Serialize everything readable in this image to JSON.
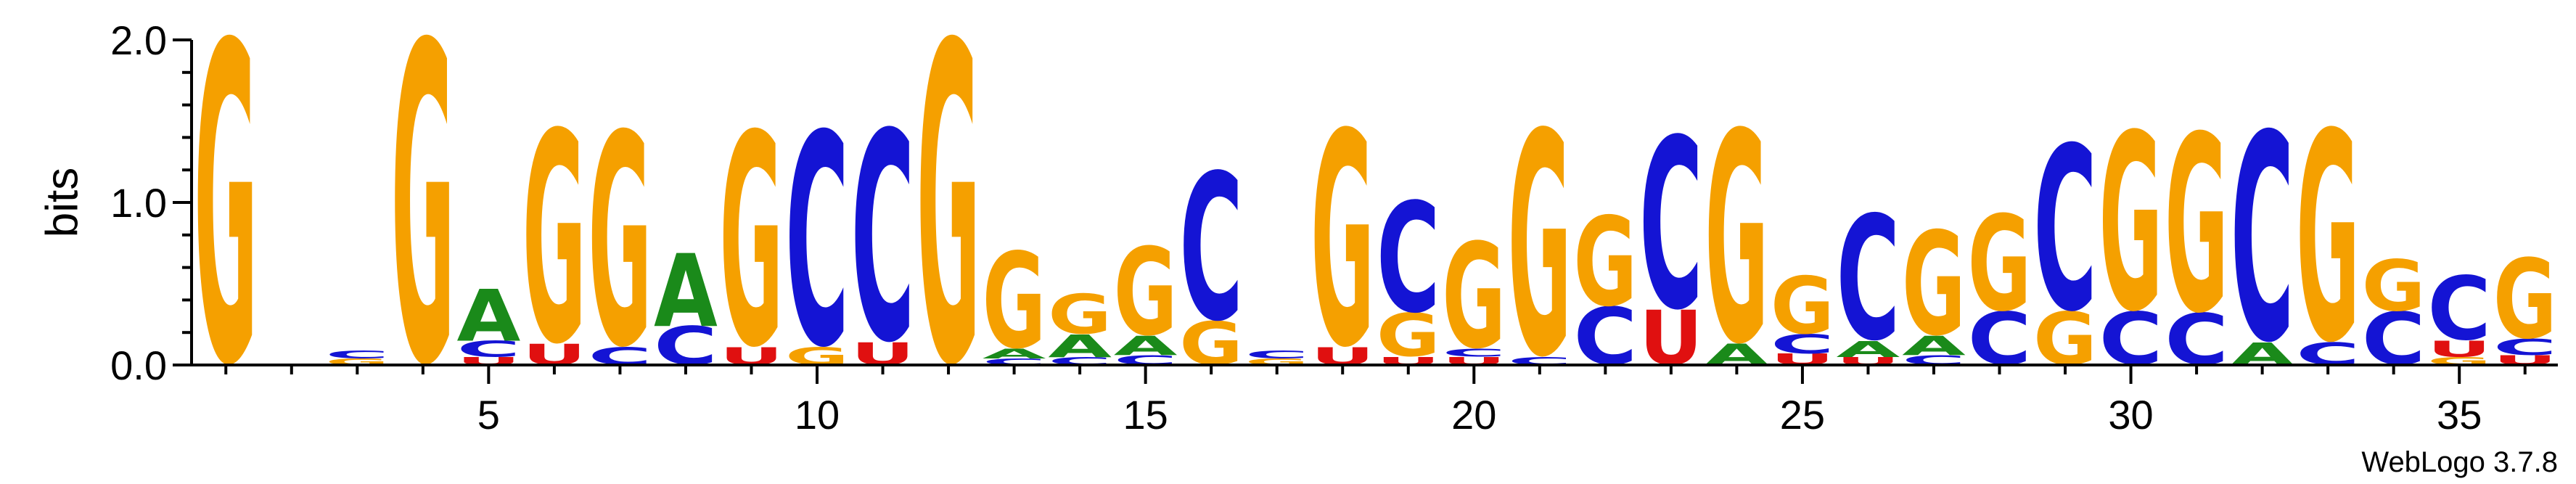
{
  "chart_data": {
    "type": "sequence-logo",
    "ylabel": "bits",
    "ylim": [
      0,
      2
    ],
    "y_ticks": [
      "0.0",
      "1.0",
      "2.0"
    ],
    "x_ticks": [
      "5",
      "10",
      "15",
      "20",
      "25",
      "30",
      "35"
    ],
    "x_tick_positions": [
      5,
      10,
      15,
      20,
      25,
      30,
      35
    ],
    "positions": 36,
    "colors": {
      "A": "#1a8a1a",
      "C": "#1414d4",
      "G": "#f5a000",
      "U": "#e01010"
    },
    "columns": [
      [
        [
          "G",
          2.0
        ]
      ],
      [],
      [
        [
          "G",
          0.04
        ],
        [
          "C",
          0.05
        ]
      ],
      [
        [
          "G",
          2.0
        ]
      ],
      [
        [
          "U",
          0.05
        ],
        [
          "C",
          0.1
        ],
        [
          "A",
          0.32
        ]
      ],
      [
        [
          "U",
          0.13
        ],
        [
          "G",
          1.32
        ]
      ],
      [
        [
          "C",
          0.11
        ],
        [
          "G",
          1.33
        ]
      ],
      [
        [
          "C",
          0.24
        ],
        [
          "A",
          0.45
        ]
      ],
      [
        [
          "U",
          0.11
        ],
        [
          "G",
          1.33
        ]
      ],
      [
        [
          "G",
          0.11
        ],
        [
          "C",
          1.33
        ]
      ],
      [
        [
          "U",
          0.14
        ],
        [
          "C",
          1.31
        ]
      ],
      [
        [
          "G",
          2.0
        ]
      ],
      [
        [
          "C",
          0.04
        ],
        [
          "A",
          0.06
        ],
        [
          "G",
          0.6
        ]
      ],
      [
        [
          "C",
          0.05
        ],
        [
          "A",
          0.14
        ],
        [
          "G",
          0.25
        ]
      ],
      [
        [
          "C",
          0.06
        ],
        [
          "A",
          0.12
        ],
        [
          "G",
          0.55
        ]
      ],
      [
        [
          "G",
          0.27
        ],
        [
          "C",
          0.92
        ]
      ],
      [
        [
          "G",
          0.04
        ],
        [
          "C",
          0.05
        ]
      ],
      [
        [
          "U",
          0.11
        ],
        [
          "G",
          1.34
        ]
      ],
      [
        [
          "U",
          0.05
        ],
        [
          "G",
          0.27
        ],
        [
          "C",
          0.69
        ]
      ],
      [
        [
          "U",
          0.05
        ],
        [
          "C",
          0.05
        ],
        [
          "G",
          0.66
        ]
      ],
      [
        [
          "C",
          0.05
        ],
        [
          "G",
          1.4
        ]
      ],
      [
        [
          "C",
          0.36
        ],
        [
          "G",
          0.56
        ]
      ],
      [
        [
          "U",
          0.34
        ],
        [
          "C",
          1.07
        ]
      ],
      [
        [
          "A",
          0.13
        ],
        [
          "G",
          1.32
        ]
      ],
      [
        [
          "U",
          0.07
        ],
        [
          "C",
          0.12
        ],
        [
          "G",
          0.36
        ]
      ],
      [
        [
          "U",
          0.05
        ],
        [
          "A",
          0.1
        ],
        [
          "C",
          0.78
        ]
      ],
      [
        [
          "C",
          0.06
        ],
        [
          "A",
          0.12
        ],
        [
          "G",
          0.65
        ]
      ],
      [
        [
          "C",
          0.33
        ],
        [
          "G",
          0.6
        ]
      ],
      [
        [
          "G",
          0.33
        ],
        [
          "C",
          1.03
        ]
      ],
      [
        [
          "C",
          0.33
        ],
        [
          "G",
          1.11
        ]
      ],
      [
        [
          "C",
          0.32
        ],
        [
          "G",
          1.11
        ]
      ],
      [
        [
          "A",
          0.14
        ],
        [
          "C",
          1.3
        ]
      ],
      [
        [
          "C",
          0.14
        ],
        [
          "G",
          1.31
        ]
      ],
      [
        [
          "C",
          0.33
        ],
        [
          "G",
          0.32
        ]
      ],
      [
        [
          "G",
          0.05
        ],
        [
          "U",
          0.1
        ],
        [
          "C",
          0.4
        ]
      ],
      [
        [
          "U",
          0.06
        ],
        [
          "C",
          0.1
        ],
        [
          "G",
          0.5
        ]
      ]
    ]
  },
  "credit": "WebLogo 3.7.8"
}
